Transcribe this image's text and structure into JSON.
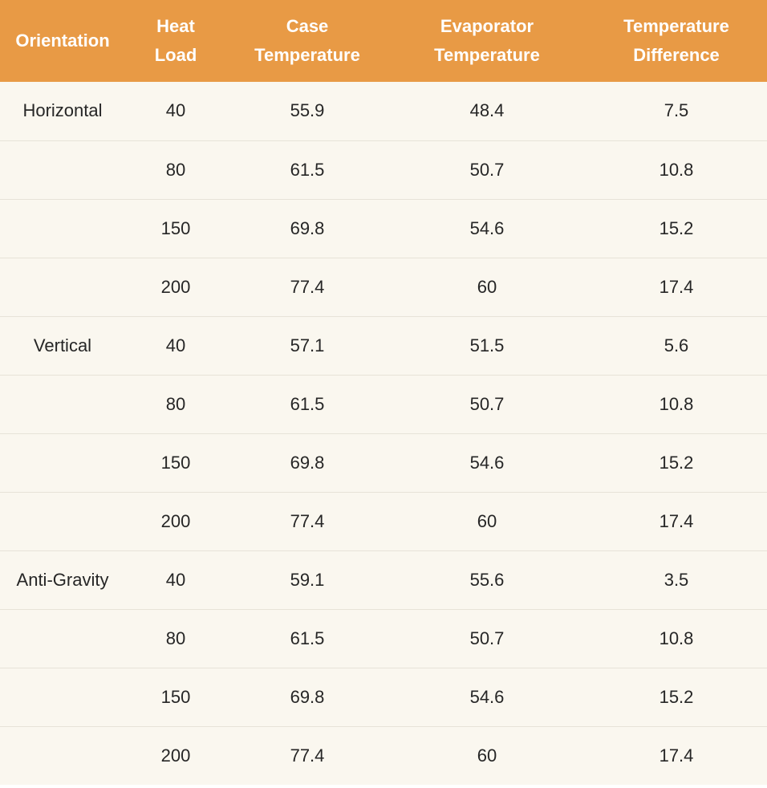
{
  "table": {
    "headers": [
      [
        "Orientation"
      ],
      [
        "Heat",
        "Load"
      ],
      [
        "Case",
        "Temperature"
      ],
      [
        "Evaporator",
        "Temperature"
      ],
      [
        "Temperature",
        "Difference"
      ]
    ],
    "rows": [
      [
        "Horizontal",
        "40",
        "55.9",
        "48.4",
        "7.5"
      ],
      [
        "",
        "80",
        "61.5",
        "50.7",
        "10.8"
      ],
      [
        "",
        "150",
        "69.8",
        "54.6",
        "15.2"
      ],
      [
        "",
        "200",
        "77.4",
        "60",
        "17.4"
      ],
      [
        "Vertical",
        "40",
        "57.1",
        "51.5",
        "5.6"
      ],
      [
        "",
        "80",
        "61.5",
        "50.7",
        "10.8"
      ],
      [
        "",
        "150",
        "69.8",
        "54.6",
        "15.2"
      ],
      [
        "",
        "200",
        "77.4",
        "60",
        "17.4"
      ],
      [
        "Anti-Gravity",
        "40",
        "59.1",
        "55.6",
        "3.5"
      ],
      [
        "",
        "80",
        "61.5",
        "50.7",
        "10.8"
      ],
      [
        "",
        "150",
        "69.8",
        "54.6",
        "15.2"
      ],
      [
        "",
        "200",
        "77.4",
        "60",
        "17.4"
      ]
    ]
  },
  "colors": {
    "header_bg": "#e89a45",
    "header_text": "#ffffff",
    "body_bg": "#faf7ef",
    "row_divider": "#e7e3d8",
    "body_text": "#262626"
  }
}
